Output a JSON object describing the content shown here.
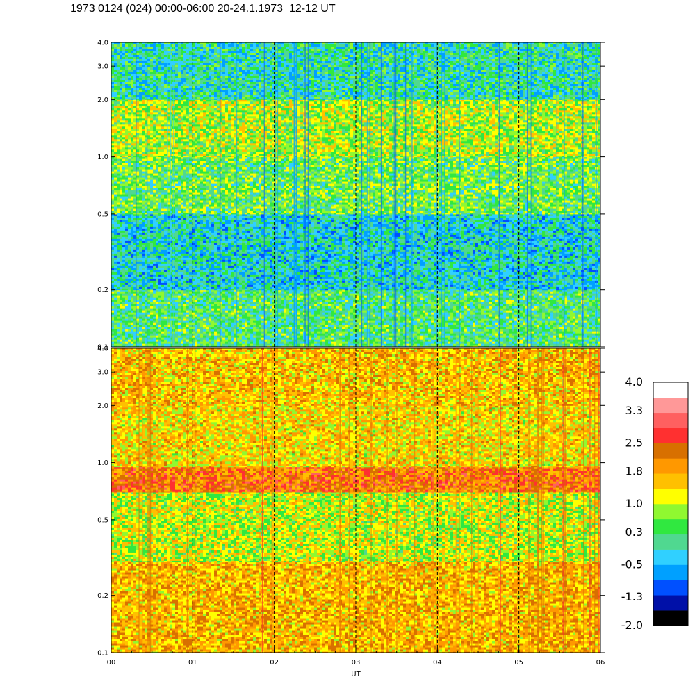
{
  "title": "1973 0124 (024) 00:00-06:00 20-24.1.1973  12-12 UT",
  "chart_data": {
    "type": "heatmap",
    "panels": [
      {
        "name": "upper",
        "yscale": "log",
        "ylim": [
          0.1,
          4.0
        ],
        "yticks": [
          {
            "value": 0.1,
            "label": "0.1"
          },
          {
            "value": 0.2,
            "label": "0.2"
          },
          {
            "value": 0.5,
            "label": "0.5"
          },
          {
            "value": 1.0,
            "label": "1.0"
          },
          {
            "value": 2.0,
            "label": "2.0"
          },
          {
            "value": 3.0,
            "label": "3.0"
          },
          {
            "value": 4.0,
            "label": "4.0"
          }
        ],
        "typical_level": 0.3,
        "bands": [
          {
            "from": 0.1,
            "to": 0.2,
            "level": 0.3
          },
          {
            "from": 0.2,
            "to": 0.5,
            "level": -0.2
          },
          {
            "from": 0.5,
            "to": 1.0,
            "level": 0.5
          },
          {
            "from": 1.0,
            "to": 2.0,
            "level": 0.9
          },
          {
            "from": 2.0,
            "to": 4.0,
            "level": 0.0
          }
        ]
      },
      {
        "name": "lower",
        "yscale": "log",
        "ylim": [
          0.1,
          4.0
        ],
        "yticks": [
          {
            "value": 0.1,
            "label": "0.1"
          },
          {
            "value": 0.2,
            "label": "0.2"
          },
          {
            "value": 0.5,
            "label": "0.5"
          },
          {
            "value": 1.0,
            "label": "1.0"
          },
          {
            "value": 2.0,
            "label": "2.0"
          },
          {
            "value": 3.0,
            "label": "3.0"
          },
          {
            "value": 4.0,
            "label": "4.0"
          }
        ],
        "typical_level": 1.5,
        "bands": [
          {
            "from": 0.1,
            "to": 0.3,
            "level": 1.7
          },
          {
            "from": 0.3,
            "to": 0.7,
            "level": 1.0
          },
          {
            "from": 0.7,
            "to": 0.95,
            "level": 2.2
          },
          {
            "from": 0.95,
            "to": 2.0,
            "level": 1.4
          },
          {
            "from": 2.0,
            "to": 4.0,
            "level": 1.6
          }
        ]
      }
    ],
    "xlim": [
      0,
      6
    ],
    "xlabel": "UT",
    "xticks": [
      {
        "value": 0,
        "label": "00"
      },
      {
        "value": 1,
        "label": "01"
      },
      {
        "value": 2,
        "label": "02"
      },
      {
        "value": 3,
        "label": "03"
      },
      {
        "value": 4,
        "label": "04"
      },
      {
        "value": 5,
        "label": "05"
      },
      {
        "value": 6,
        "label": "06"
      }
    ],
    "dashed_lines_at": [
      1,
      2,
      3,
      4,
      5
    ],
    "colorbar": {
      "range": [
        -2.0,
        4.0
      ],
      "labels": [
        {
          "value": 4.0,
          "label": "4.0"
        },
        {
          "value": 3.3,
          "label": "3.3"
        },
        {
          "value": 2.5,
          "label": "2.5"
        },
        {
          "value": 1.8,
          "label": "1.8"
        },
        {
          "value": 1.0,
          "label": "1.0"
        },
        {
          "value": 0.3,
          "label": "0.3"
        },
        {
          "value": -0.5,
          "label": "-0.5"
        },
        {
          "value": -1.3,
          "label": "-1.3"
        },
        {
          "value": -2.0,
          "label": "-2.0"
        }
      ],
      "colors": [
        "#000000",
        "#0010a8",
        "#0050ff",
        "#00a0ff",
        "#30d0ff",
        "#50d890",
        "#30e840",
        "#90f830",
        "#ffff00",
        "#ffc000",
        "#ff9800",
        "#d87000",
        "#ff3030",
        "#ff6060",
        "#ff9898",
        "#ffffff"
      ]
    }
  }
}
